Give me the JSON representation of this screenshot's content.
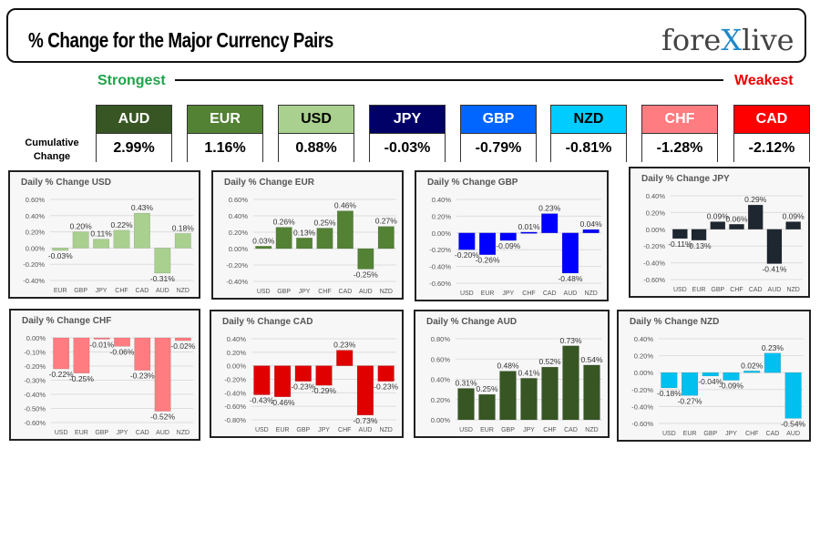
{
  "header": {
    "title": "% Change for the Major Currency Pairs",
    "logo": "forexlive",
    "strongest": "Strongest",
    "weakest": "Weakest",
    "cumulative_label": "Cumulative Change"
  },
  "rankings": [
    {
      "code": "AUD",
      "value": "2.99%",
      "bg": "#375623",
      "fg": "#ffffff"
    },
    {
      "code": "EUR",
      "value": "1.16%",
      "bg": "#548235",
      "fg": "#ffffff"
    },
    {
      "code": "USD",
      "value": "0.88%",
      "bg": "#a9d08e",
      "fg": "#000000"
    },
    {
      "code": "JPY",
      "value": "-0.03%",
      "bg": "#000066",
      "fg": "#ffffff"
    },
    {
      "code": "GBP",
      "value": "-0.79%",
      "bg": "#0066ff",
      "fg": "#ffffff"
    },
    {
      "code": "NZD",
      "value": "-0.81%",
      "bg": "#00ccff",
      "fg": "#000000"
    },
    {
      "code": "CHF",
      "value": "-1.28%",
      "bg": "#ff7c80",
      "fg": "#ffffff"
    },
    {
      "code": "CAD",
      "value": "-2.12%",
      "bg": "#ff0000",
      "fg": "#ffffff"
    }
  ],
  "chart_data": [
    {
      "type": "bar",
      "title": "Daily % Change USD",
      "categories": [
        "EUR",
        "GBP",
        "JPY",
        "CHF",
        "CAD",
        "AUD",
        "NZD"
      ],
      "values": [
        -0.03,
        0.2,
        0.11,
        0.22,
        0.43,
        -0.31,
        0.18
      ],
      "ylim": [
        -0.4,
        0.6
      ],
      "yticks": [
        0.6,
        0.4,
        0.2,
        0,
        -0.2,
        -0.4
      ],
      "color": "#a9d08e",
      "grid": true
    },
    {
      "type": "bar",
      "title": "Daily % Change EUR",
      "categories": [
        "USD",
        "GBP",
        "JPY",
        "CHF",
        "CAD",
        "AUD",
        "NZD"
      ],
      "values": [
        0.03,
        0.26,
        0.13,
        0.25,
        0.46,
        -0.25,
        0.27
      ],
      "ylim": [
        -0.4,
        0.6
      ],
      "yticks": [
        0.6,
        0.4,
        0.2,
        0,
        -0.2,
        -0.4
      ],
      "color": "#548235",
      "grid": true
    },
    {
      "type": "bar",
      "title": "Daily % Change GBP",
      "categories": [
        "USD",
        "EUR",
        "JPY",
        "CHF",
        "CAD",
        "AUD",
        "NZD"
      ],
      "values": [
        -0.2,
        -0.26,
        -0.09,
        0.01,
        0.23,
        -0.48,
        0.04
      ],
      "ylim": [
        -0.6,
        0.4
      ],
      "yticks": [
        0.4,
        0.2,
        0,
        -0.2,
        -0.4,
        -0.6
      ],
      "color": "#0000ff",
      "grid": true
    },
    {
      "type": "bar",
      "title": "Daily % Change JPY",
      "categories": [
        "USD",
        "EUR",
        "GBP",
        "CHF",
        "CAD",
        "AUD",
        "NZD"
      ],
      "values": [
        -0.11,
        -0.13,
        0.09,
        0.06,
        0.29,
        -0.41,
        0.09
      ],
      "ylim": [
        -0.6,
        0.4
      ],
      "yticks": [
        0.4,
        0.2,
        0,
        -0.2,
        -0.4,
        -0.6
      ],
      "color": "#1e2630",
      "grid": true
    },
    {
      "type": "bar",
      "title": "Daily % Change CHF",
      "categories": [
        "USD",
        "EUR",
        "GBP",
        "JPY",
        "CAD",
        "AUD",
        "NZD"
      ],
      "values": [
        -0.22,
        -0.25,
        -0.01,
        -0.06,
        -0.23,
        -0.52,
        -0.02
      ],
      "ylim": [
        -0.6,
        0
      ],
      "yticks": [
        0,
        -0.1,
        -0.2,
        -0.3,
        -0.4,
        -0.5,
        -0.6
      ],
      "color": "#ff7c80",
      "grid": true
    },
    {
      "type": "bar",
      "title": "Daily % Change CAD",
      "categories": [
        "USD",
        "EUR",
        "GBP",
        "JPY",
        "CHF",
        "AUD",
        "NZD"
      ],
      "values": [
        -0.43,
        -0.46,
        -0.23,
        -0.29,
        0.23,
        -0.73,
        -0.23
      ],
      "ylim": [
        -0.8,
        0.4
      ],
      "yticks": [
        0.4,
        0.2,
        0,
        -0.2,
        -0.4,
        -0.6,
        -0.8
      ],
      "color": "#e00000",
      "grid": true
    },
    {
      "type": "bar",
      "title": "Daily % Change AUD",
      "categories": [
        "USD",
        "EUR",
        "GBP",
        "JPY",
        "CHF",
        "CAD",
        "NZD"
      ],
      "values": [
        0.31,
        0.25,
        0.48,
        0.41,
        0.52,
        0.73,
        0.54
      ],
      "ylim": [
        0,
        0.8
      ],
      "yticks": [
        0.8,
        0.6,
        0.4,
        0.2,
        0
      ],
      "color": "#375623",
      "grid": true
    },
    {
      "type": "bar",
      "title": "Daily % Change NZD",
      "categories": [
        "USD",
        "EUR",
        "GBP",
        "JPY",
        "CHF",
        "CAD",
        "AUD"
      ],
      "values": [
        -0.18,
        -0.27,
        -0.04,
        -0.09,
        0.02,
        0.23,
        -0.54
      ],
      "ylim": [
        -0.6,
        0.4
      ],
      "yticks": [
        0.4,
        0.2,
        0,
        -0.2,
        -0.4,
        -0.6
      ],
      "color": "#00c0f0",
      "grid": true
    }
  ]
}
